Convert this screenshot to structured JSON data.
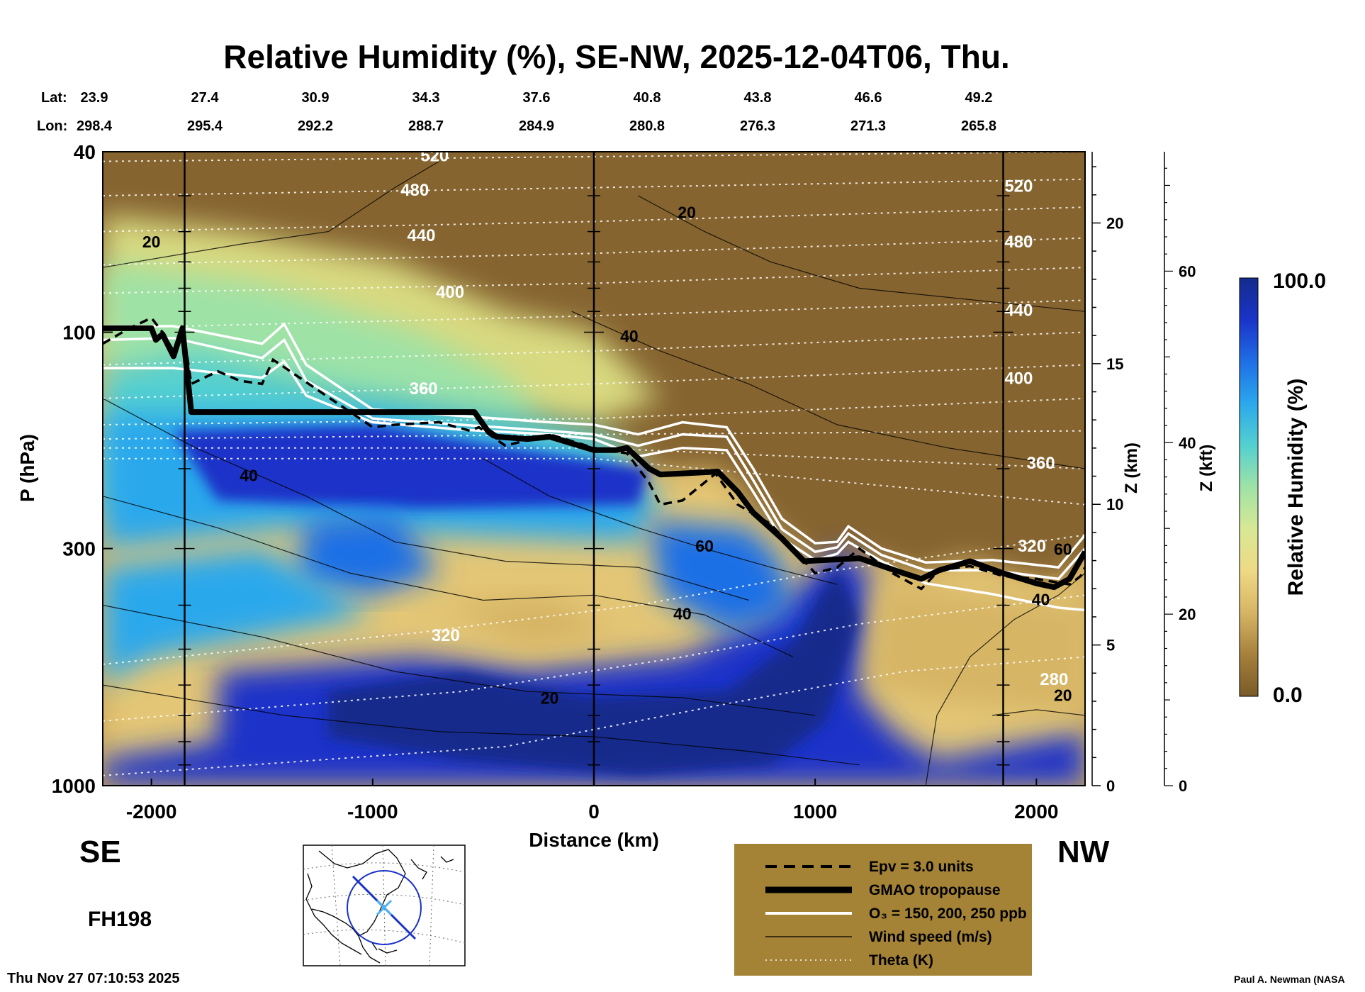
{
  "chart_data": {
    "type": "heatmap",
    "title": "Relative Humidity (%), SE-NW, 2025-12-04T06, Thu.",
    "xlabel": "Distance (km)",
    "ylabel": "P (hPa)",
    "y2label": "Z (km)",
    "y3label": "Z (kft)",
    "xlim": [
      -2220,
      2220
    ],
    "ylim": [
      1000,
      40
    ],
    "yscale": "log",
    "x_ticks": [
      -2000,
      -1000,
      0,
      1000,
      2000
    ],
    "x_tick_labels": [
      "-2000",
      "-1000",
      "0",
      "1000",
      "2000"
    ],
    "y_ticks": [
      1000,
      300,
      100,
      40
    ],
    "y_tick_labels": [
      "1000",
      "300",
      "100",
      "40"
    ],
    "z_km_ticks": [
      0,
      5,
      10,
      15,
      20
    ],
    "z_kft_ticks": [
      0,
      20,
      40,
      60
    ],
    "lat_label": "Lat:",
    "lon_label": "Lon:",
    "lat_values": [
      "23.9",
      "27.4",
      "30.9",
      "34.3",
      "37.6",
      "40.8",
      "43.8",
      "46.6",
      "49.2"
    ],
    "lon_values": [
      "298.4",
      "295.4",
      "292.2",
      "288.7",
      "284.9",
      "280.8",
      "276.3",
      "271.3",
      "265.8"
    ],
    "left_end_label": "SE",
    "right_end_label": "NW",
    "forecast_hour": "FH198",
    "timestamp": "Thu Nov 27 07:10:53 2025",
    "credit": "Paul A. Newman (NASA",
    "colorbar": {
      "label": "Relative Humidity (%)",
      "max_label": "100.0",
      "min_label": "0.0",
      "range": [
        0,
        100
      ],
      "colors": [
        "#7a5a28",
        "#a5813c",
        "#d6b565",
        "#eed985",
        "#d8e895",
        "#9fe2a6",
        "#54d0d0",
        "#2ba8ec",
        "#1f6fe5",
        "#1a33c8",
        "#142c8c"
      ]
    },
    "vertical_lines_x": [
      -1850,
      0,
      1850
    ],
    "tropopause": {
      "name": "GMAO tropopause",
      "x": [
        -2220,
        -2000,
        -1980,
        -1950,
        -1900,
        -1860,
        -1820,
        -1000,
        -800,
        -540,
        -480,
        -440,
        -300,
        -200,
        0,
        100,
        150,
        250,
        300,
        560,
        650,
        720,
        850,
        950,
        1200,
        1400,
        1480,
        1560,
        1700,
        1850,
        2000,
        2080,
        2150,
        2220
      ],
      "y": [
        98,
        98,
        104,
        101,
        113,
        98,
        150,
        150,
        150,
        150,
        165,
        170,
        172,
        170,
        182,
        182,
        180,
        200,
        206,
        203,
        225,
        250,
        285,
        320,
        315,
        340,
        350,
        335,
        320,
        340,
        358,
        365,
        350,
        305
      ]
    },
    "epv_line": {
      "name": "Epv = 3.0 units",
      "x": [
        -2220,
        -2100,
        -2000,
        -1950,
        -1900,
        -1860,
        -1820,
        -1700,
        -1600,
        -1500,
        -1450,
        -1000,
        -900,
        -700,
        -560,
        -520,
        -400,
        -200,
        0,
        150,
        250,
        300,
        400,
        550,
        650,
        800,
        900,
        1000,
        1100,
        1200,
        1350,
        1480,
        1560,
        1700,
        1850,
        2000,
        2150,
        2200,
        2220
      ],
      "y": [
        106,
        98,
        93,
        100,
        110,
        96,
        130,
        122,
        128,
        130,
        115,
        162,
        160,
        158,
        165,
        162,
        178,
        168,
        180,
        185,
        215,
        240,
        235,
        205,
        240,
        265,
        300,
        340,
        330,
        300,
        340,
        368,
        335,
        328,
        345,
        350,
        360,
        345,
        330
      ]
    },
    "ozone": {
      "name": "O₃ = 150, 200, 250 ppb",
      "series": [
        {
          "values_label": "150",
          "x": [
            -2220,
            -1900,
            -1500,
            -1400,
            -1300,
            -1000,
            -600,
            -200,
            0,
            200,
            400,
            600,
            720,
            850,
            1000,
            1100,
            1150,
            1300,
            1500,
            1800,
            2100,
            2220
          ],
          "y": [
            97,
            97,
            106,
            96,
            118,
            148,
            153,
            158,
            160,
            168,
            158,
            162,
            200,
            258,
            292,
            290,
            268,
            300,
            322,
            318,
            330,
            280
          ]
        },
        {
          "values_label": "200",
          "x": [
            -2220,
            -1900,
            -1500,
            -1400,
            -1300,
            -1000,
            -600,
            -200,
            0,
            200,
            400,
            600,
            720,
            850,
            1000,
            1100,
            1150,
            1300,
            1500,
            1800,
            2100,
            2220
          ],
          "y": [
            104,
            103,
            114,
            104,
            128,
            155,
            160,
            165,
            168,
            178,
            168,
            170,
            212,
            272,
            305,
            298,
            278,
            310,
            335,
            335,
            350,
            300
          ]
        },
        {
          "values_label": "250",
          "x": [
            -2220,
            -1900,
            -1500,
            -1400,
            -1300,
            -1000,
            -600,
            -200,
            0,
            200,
            400,
            600,
            720,
            850,
            1000,
            1100,
            1150,
            1300,
            1500,
            1800,
            2100,
            2220
          ],
          "y": [
            120,
            120,
            126,
            116,
            138,
            158,
            164,
            168,
            172,
            188,
            180,
            182,
            225,
            285,
            318,
            308,
            290,
            320,
            358,
            378,
            405,
            410
          ]
        }
      ]
    },
    "theta": {
      "name": "Theta (K)",
      "levels": [
        280,
        320,
        360,
        400,
        440,
        480,
        520
      ],
      "contour_labels": [
        {
          "value": "520",
          "x": -720,
          "y": 42
        },
        {
          "value": "480",
          "x": -810,
          "y": 50
        },
        {
          "value": "440",
          "x": -780,
          "y": 63
        },
        {
          "value": "400",
          "x": -650,
          "y": 84
        },
        {
          "value": "360",
          "x": -770,
          "y": 137
        },
        {
          "value": "320",
          "x": -670,
          "y": 480
        },
        {
          "value": "520",
          "x": 1920,
          "y": 49
        },
        {
          "value": "480",
          "x": 1920,
          "y": 65
        },
        {
          "value": "440",
          "x": 1920,
          "y": 92
        },
        {
          "value": "400",
          "x": 1920,
          "y": 130
        },
        {
          "value": "360",
          "x": 2020,
          "y": 200
        },
        {
          "value": "320",
          "x": 1980,
          "y": 305
        },
        {
          "value": "280",
          "x": 2080,
          "y": 600
        }
      ]
    },
    "wind": {
      "name": "Wind speed (m/s)",
      "levels": [
        20,
        40,
        60
      ],
      "contour_labels": [
        {
          "value": "20",
          "x": -2000,
          "y": 65
        },
        {
          "value": "40",
          "x": -1560,
          "y": 213
        },
        {
          "value": "40",
          "x": 160,
          "y": 105
        },
        {
          "value": "20",
          "x": 420,
          "y": 56
        },
        {
          "value": "60",
          "x": 500,
          "y": 305
        },
        {
          "value": "40",
          "x": 400,
          "y": 430
        },
        {
          "value": "20",
          "x": -200,
          "y": 660
        },
        {
          "value": "60",
          "x": 2120,
          "y": 310
        },
        {
          "value": "40",
          "x": 2020,
          "y": 400
        },
        {
          "value": "20",
          "x": 2120,
          "y": 650
        }
      ]
    },
    "legend": {
      "placement": "bottom-right",
      "items": [
        {
          "style": "dashed",
          "label": "Epv = 3.0 units"
        },
        {
          "style": "thick",
          "label": "GMAO tropopause"
        },
        {
          "style": "white",
          "label": "O₃ = 150, 200, 250 ppb"
        },
        {
          "style": "thin",
          "label": "Wind speed (m/s)"
        },
        {
          "style": "dotted",
          "label": "Theta (K)"
        }
      ]
    },
    "colors": {
      "legend_background": "#a48336",
      "tropopause": "#000000",
      "ozone": "#ffffff",
      "theta": "#ffffff",
      "map_path": "#1a33c8",
      "map_center": "#4ab3f4"
    }
  }
}
